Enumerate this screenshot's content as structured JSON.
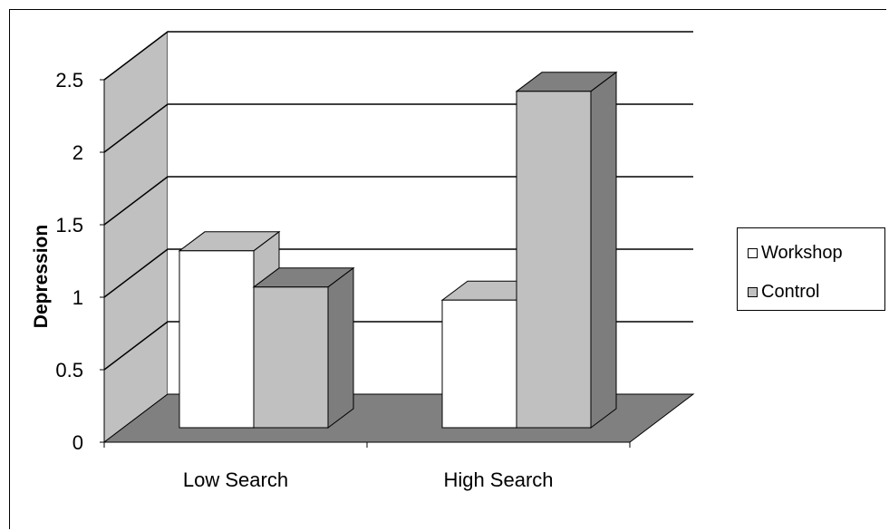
{
  "chart_data": {
    "type": "bar",
    "subtype": "3d-clustered-column",
    "title": "",
    "xlabel": "",
    "ylabel": "Depression",
    "categories": [
      "Low Search",
      "High Search"
    ],
    "series": [
      {
        "name": "Workshop",
        "values": [
          1.22,
          0.88
        ],
        "color": "#ffffff",
        "side_color": "#c0c0c0"
      },
      {
        "name": "Control",
        "values": [
          0.97,
          2.32
        ],
        "color": "#c0c0c0",
        "side_color": "#808080"
      }
    ],
    "ylim": [
      0,
      2.5
    ],
    "yticks": [
      "0",
      "0.5",
      "1",
      "1.5",
      "2",
      "2.5"
    ],
    "grid": true,
    "legend_position": "right",
    "wall_color": "#c0c0c0",
    "floor_color": "#808080"
  }
}
